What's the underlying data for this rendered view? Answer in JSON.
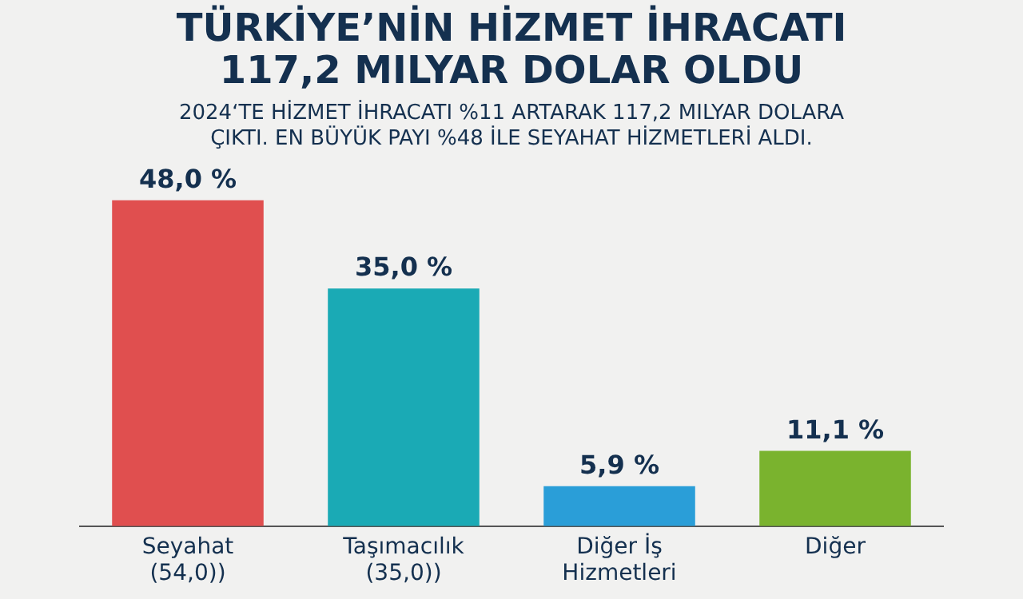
{
  "chart_data": {
    "type": "bar",
    "title": "TÜRKİYE’NİN HİZMET İHRACATI\n117,2 MILYAR DOLAR OLDU",
    "subtitle": "2024‘TE HİZMET İHRACATI %11 ARTARAK 117,2 MILYAR DOLARA\nÇIKTI. EN BÜYÜK PAYI %48 İLE SEYAHAT HİZMETLERİ ALDI.",
    "categories": [
      "Seyahat (54,0))",
      "Taşımacılık (35,0))",
      "Diğer İş Hizmetleri",
      "Diğer"
    ],
    "values": [
      48.0,
      35.0,
      5.9,
      11.1
    ],
    "colors": [
      "#e04f4f",
      "#1aaab5",
      "#2a9ed8",
      "#7ab32e"
    ],
    "value_labels": [
      "48,0 %",
      "35,0 %",
      "5,9 %",
      "11,1 %"
    ],
    "grid": false,
    "legend": false
  }
}
